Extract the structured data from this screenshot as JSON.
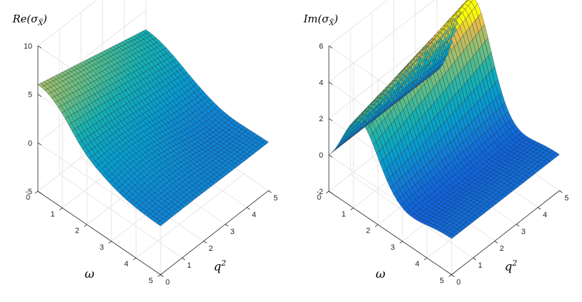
{
  "chart_data": [
    {
      "type": "surface",
      "title": "Re(σ",
      "title_sub": "X̃",
      "title_close": ")",
      "xlabel": "ω",
      "ylabel": "q",
      "ylabel_sup": "2",
      "xlim": [
        0,
        5
      ],
      "ylim": [
        0,
        5
      ],
      "zlim": [
        -5,
        10
      ],
      "xticks": [
        "0",
        "1",
        "2",
        "3",
        "4",
        "5"
      ],
      "yticks": [
        "0",
        "1",
        "2",
        "3",
        "4",
        "5"
      ],
      "zticks": [
        "-5",
        "0",
        "5",
        "10"
      ],
      "zticks_values": [
        -5,
        0,
        5,
        10
      ],
      "colormap": "parula",
      "grid": true,
      "corner_values": {
        "omega0_q0": 6,
        "omega0_q5": 3,
        "omega5_q0": 0,
        "omega5_q5": 0
      },
      "surface_model": "re"
    },
    {
      "type": "surface",
      "title": "Im(σ",
      "title_sub": "X̃",
      "title_close": ")",
      "xlabel": "ω",
      "ylabel": "q",
      "ylabel_sup": "2",
      "xlim": [
        0,
        5
      ],
      "ylim": [
        0,
        5
      ],
      "zlim": [
        -2,
        6
      ],
      "xticks": [
        "0",
        "1",
        "2",
        "3",
        "4",
        "5"
      ],
      "yticks": [
        "0",
        "1",
        "2",
        "3",
        "4",
        "5"
      ],
      "zticks": [
        "-2",
        "0",
        "2",
        "4",
        "6"
      ],
      "zticks_values": [
        -2,
        0,
        2,
        4,
        6
      ],
      "colormap": "parula",
      "grid": true,
      "peak": {
        "omega": 1.2,
        "q2_start": 0,
        "value_at_q0": 3.5,
        "value_at_q5": 6
      },
      "surface_model": "im"
    }
  ]
}
